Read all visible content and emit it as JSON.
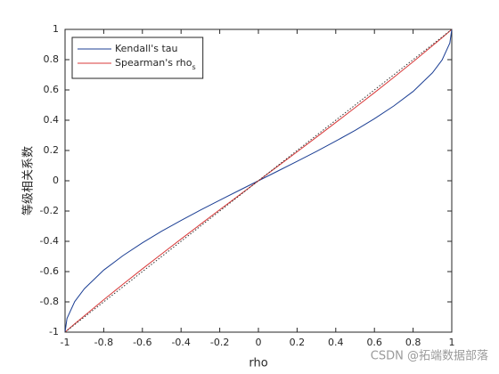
{
  "chart_data": {
    "type": "line",
    "xlabel": "rho",
    "ylabel": "等级相关系数",
    "x": [
      -1,
      -0.99,
      -0.95,
      -0.9,
      -0.8,
      -0.7,
      -0.6,
      -0.5,
      -0.4,
      -0.3,
      -0.2,
      -0.1,
      0,
      0.1,
      0.2,
      0.3,
      0.4,
      0.5,
      0.6,
      0.7,
      0.8,
      0.9,
      0.95,
      0.99,
      1
    ],
    "series": [
      {
        "name": "Kendall's tau",
        "color": "#1c3f94",
        "style": "solid",
        "values": [
          -1,
          -0.91,
          -0.798,
          -0.713,
          -0.59,
          -0.494,
          -0.41,
          -0.333,
          -0.262,
          -0.194,
          -0.128,
          -0.064,
          0,
          0.064,
          0.128,
          0.194,
          0.262,
          0.333,
          0.41,
          0.494,
          0.59,
          0.713,
          0.798,
          0.91,
          1
        ]
      },
      {
        "name": "Spearman's rho_s",
        "color": "#d93a3a",
        "style": "solid",
        "values": [
          -1,
          -0.989,
          -0.945,
          -0.892,
          -0.786,
          -0.683,
          -0.582,
          -0.483,
          -0.385,
          -0.288,
          -0.191,
          -0.096,
          0,
          0.096,
          0.191,
          0.288,
          0.385,
          0.483,
          0.582,
          0.683,
          0.786,
          0.892,
          0.945,
          0.989,
          1
        ]
      },
      {
        "color": "#333333",
        "style": "dotted",
        "values": [
          -1,
          -0.99,
          -0.95,
          -0.9,
          -0.8,
          -0.7,
          -0.6,
          -0.5,
          -0.4,
          -0.3,
          -0.2,
          -0.1,
          0,
          0.1,
          0.2,
          0.3,
          0.4,
          0.5,
          0.6,
          0.7,
          0.8,
          0.9,
          0.95,
          0.99,
          1
        ]
      }
    ],
    "xlim": [
      -1,
      1
    ],
    "ylim": [
      -1,
      1
    ],
    "xticks": [
      -1,
      -0.8,
      -0.6,
      -0.4,
      -0.2,
      0,
      0.2,
      0.4,
      0.6,
      0.8,
      1
    ],
    "yticks": [
      -1,
      -0.8,
      -0.6,
      -0.4,
      -0.2,
      0,
      0.2,
      0.4,
      0.6,
      0.8,
      1
    ],
    "legend": "upper-left",
    "grid": false,
    "watermark": "CSDN @拓端数据部落"
  }
}
